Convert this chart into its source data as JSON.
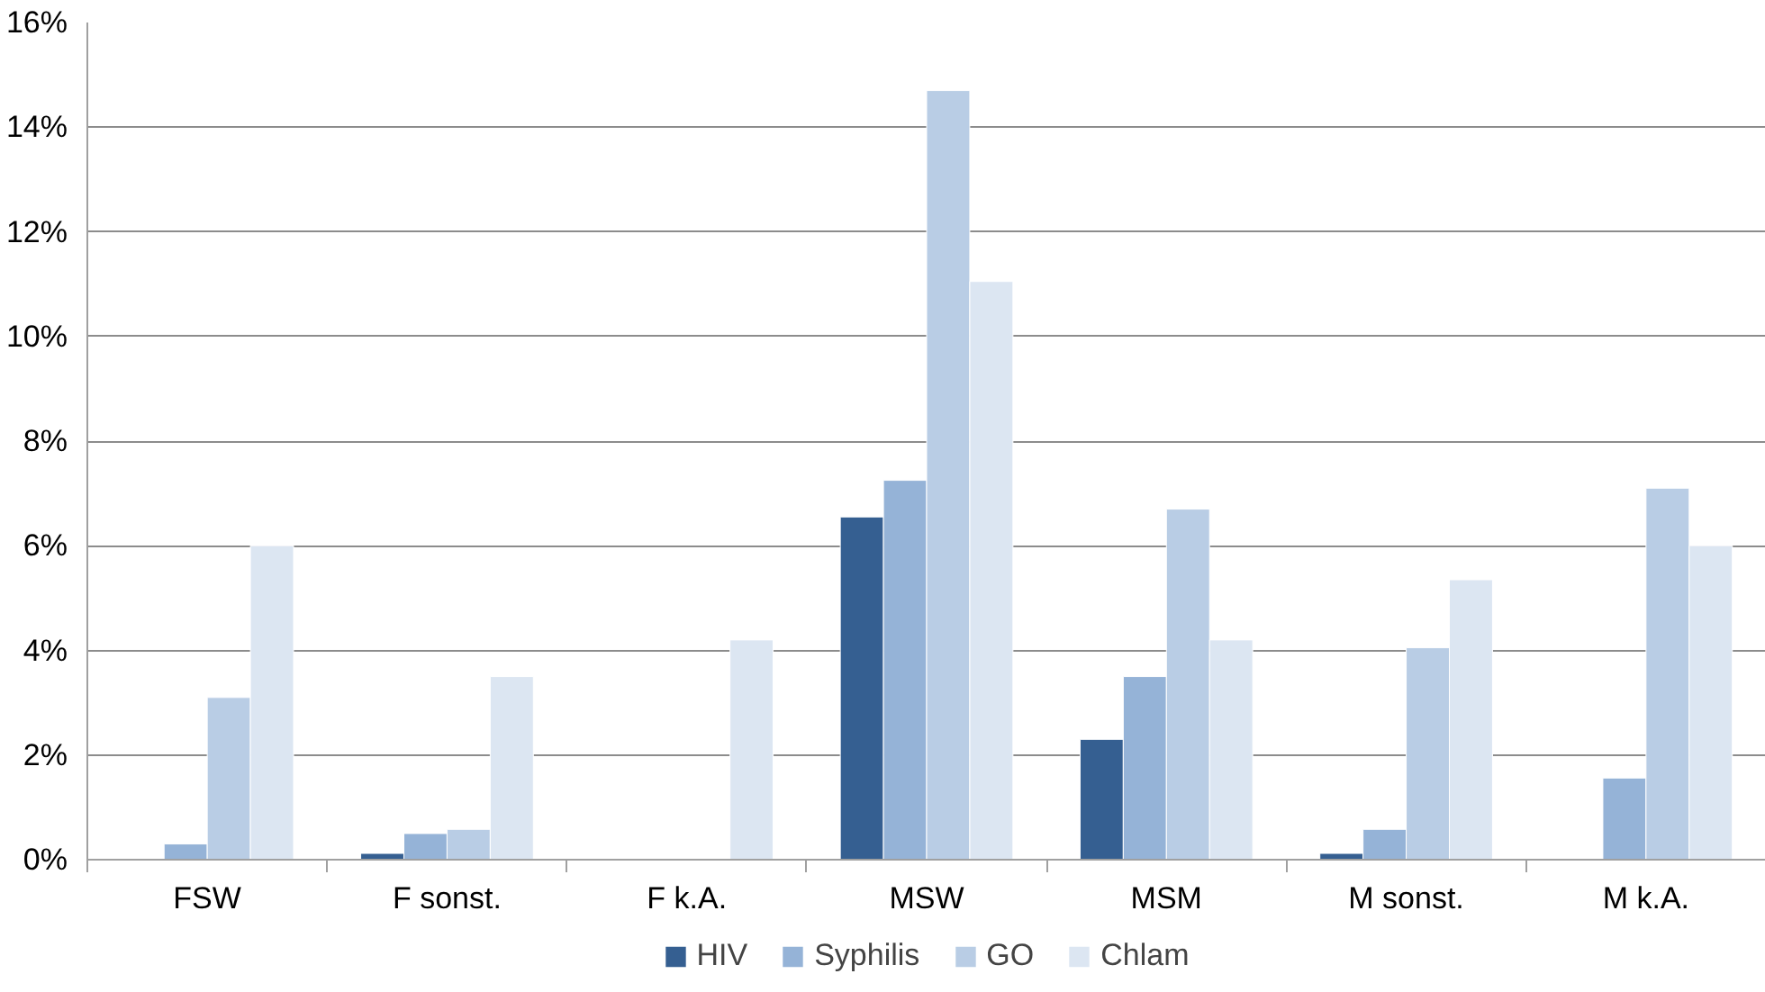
{
  "chart_data": {
    "type": "bar",
    "categories": [
      "FSW",
      "F sonst.",
      "F k.A.",
      "MSW",
      "MSM",
      "M sonst.",
      "M k.A."
    ],
    "series": [
      {
        "name": "HIV",
        "color": "#355f91",
        "values": [
          null,
          0.12,
          null,
          6.55,
          2.3,
          0.12,
          null
        ]
      },
      {
        "name": "Syphilis",
        "color": "#95b3d7",
        "values": [
          0.3,
          0.5,
          null,
          7.25,
          3.5,
          0.58,
          1.56
        ]
      },
      {
        "name": "GO",
        "color": "#b9cde5",
        "values": [
          3.1,
          0.58,
          null,
          14.7,
          6.7,
          4.05,
          7.1
        ]
      },
      {
        "name": "Chlam",
        "color": "#dce6f2",
        "values": [
          6.0,
          3.5,
          4.2,
          11.05,
          4.2,
          5.35,
          6.0
        ]
      }
    ],
    "ylim": [
      0,
      16
    ],
    "yticks": [
      {
        "value": 0,
        "label": "0%"
      },
      {
        "value": 2,
        "label": "2%"
      },
      {
        "value": 4,
        "label": "4%"
      },
      {
        "value": 6,
        "label": "6%"
      },
      {
        "value": 8,
        "label": "8%"
      },
      {
        "value": 10,
        "label": "10%"
      },
      {
        "value": 12,
        "label": "12%"
      },
      {
        "value": 14,
        "label": "14%"
      },
      {
        "value": 16,
        "label": "16%"
      }
    ],
    "grid": "y",
    "legend": "bottom"
  }
}
